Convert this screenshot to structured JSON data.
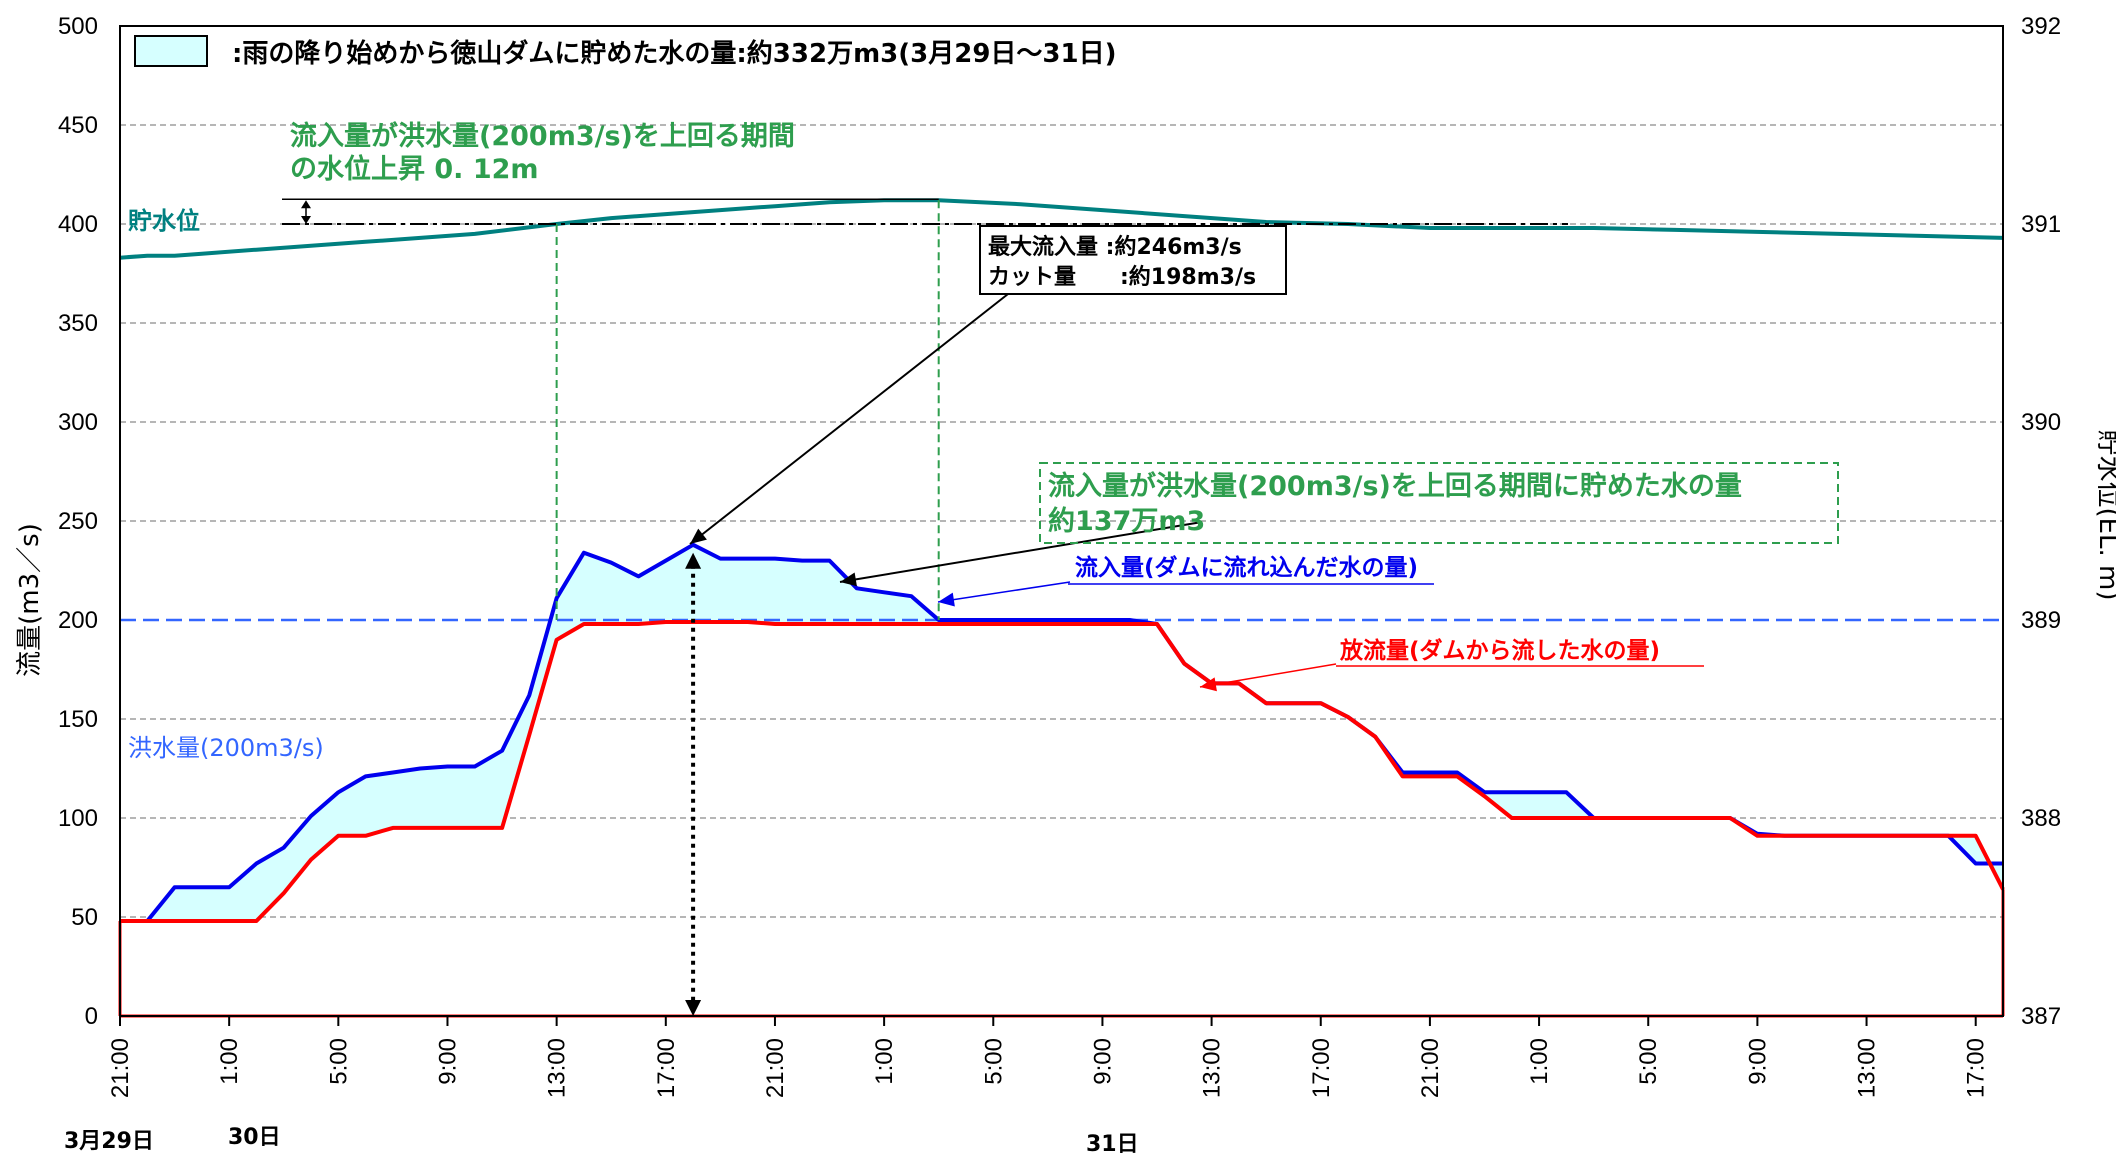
{
  "chart_data": {
    "type": "line",
    "legend": {
      "swatch_fill": "#d6ffff",
      "text": ":雨の降り始めから徳山ダムに貯めた水の量:約332万m3(3月29日～31日)"
    },
    "y_left": {
      "label": "流量(m3／s)",
      "min": 0,
      "max": 500,
      "ticks": [
        "0",
        "50",
        "100",
        "150",
        "200",
        "250",
        "300",
        "350",
        "400",
        "450",
        "500"
      ]
    },
    "y_right": {
      "label": "貯水位(EL. m)",
      "min": 387,
      "max": 392,
      "ticks": [
        "387",
        "388",
        "389",
        "390",
        "391",
        "392"
      ]
    },
    "x": {
      "start_hour": 0,
      "end_hour": 69,
      "tick_labels": [
        "21:00",
        "1:00",
        "5:00",
        "9:00",
        "13:00",
        "17:00",
        "21:00",
        "1:00",
        "5:00",
        "9:00",
        "13:00",
        "17:00",
        "21:00",
        "1:00",
        "5:00",
        "9:00",
        "13:00",
        "17:00"
      ],
      "date_labels": [
        {
          "label": "3月29日",
          "hour": -1.7
        },
        {
          "label": "30日",
          "hour": 4.9
        },
        {
          "label": "31日",
          "hour": 36.6
        }
      ]
    },
    "flood_threshold": {
      "value": 200,
      "label": "洪水量(200m3/s)",
      "color": "#3366ff"
    },
    "series": [
      {
        "name": "流入量(ダムに流れ込んだ水の量)",
        "color": "#0000ee",
        "axis": "left",
        "points": [
          [
            0,
            48
          ],
          [
            1,
            48
          ],
          [
            2,
            65
          ],
          [
            3,
            65
          ],
          [
            4,
            65
          ],
          [
            5,
            77
          ],
          [
            6,
            85
          ],
          [
            7,
            101
          ],
          [
            8,
            113
          ],
          [
            9,
            121
          ],
          [
            10,
            123
          ],
          [
            11,
            125
          ],
          [
            12,
            126
          ],
          [
            13,
            126
          ],
          [
            14,
            134
          ],
          [
            15,
            162
          ],
          [
            16,
            211
          ],
          [
            17,
            234
          ],
          [
            18,
            229
          ],
          [
            19,
            222
          ],
          [
            20,
            230
          ],
          [
            21,
            238
          ],
          [
            22,
            231
          ],
          [
            23,
            231
          ],
          [
            24,
            231
          ],
          [
            25,
            230
          ],
          [
            26,
            230
          ],
          [
            27,
            216
          ],
          [
            28,
            214
          ],
          [
            29,
            212
          ],
          [
            30,
            200
          ],
          [
            31,
            200
          ],
          [
            32,
            200
          ],
          [
            33,
            200
          ],
          [
            34,
            200
          ],
          [
            35,
            200
          ],
          [
            36,
            200
          ],
          [
            37,
            200
          ],
          [
            38,
            198
          ],
          [
            39,
            178
          ],
          [
            40,
            168
          ],
          [
            41,
            168
          ],
          [
            42,
            158
          ],
          [
            43,
            158
          ],
          [
            44,
            158
          ],
          [
            45,
            151
          ],
          [
            46,
            141
          ],
          [
            47,
            123
          ],
          [
            48,
            123
          ],
          [
            49,
            123
          ],
          [
            50,
            113
          ],
          [
            51,
            113
          ],
          [
            52,
            113
          ],
          [
            53,
            113
          ],
          [
            54,
            100
          ],
          [
            55,
            100
          ],
          [
            56,
            100
          ],
          [
            57,
            100
          ],
          [
            58,
            100
          ],
          [
            59,
            100
          ],
          [
            60,
            92
          ],
          [
            61,
            91
          ],
          [
            62,
            91
          ],
          [
            63,
            91
          ],
          [
            64,
            91
          ],
          [
            65,
            91
          ],
          [
            66,
            91
          ],
          [
            67,
            91
          ],
          [
            68,
            77
          ],
          [
            69,
            77
          ]
        ]
      },
      {
        "name": "放流量(ダムから流した水の量)",
        "color": "#ff0000",
        "axis": "left",
        "points": [
          [
            0,
            48
          ],
          [
            1,
            48
          ],
          [
            2,
            48
          ],
          [
            3,
            48
          ],
          [
            4,
            48
          ],
          [
            5,
            48
          ],
          [
            6,
            62
          ],
          [
            7,
            79
          ],
          [
            8,
            91
          ],
          [
            9,
            91
          ],
          [
            10,
            95
          ],
          [
            11,
            95
          ],
          [
            12,
            95
          ],
          [
            13,
            95
          ],
          [
            14,
            95
          ],
          [
            15,
            142
          ],
          [
            16,
            190
          ],
          [
            17,
            198
          ],
          [
            18,
            198
          ],
          [
            19,
            198
          ],
          [
            20,
            199
          ],
          [
            21,
            199
          ],
          [
            22,
            199
          ],
          [
            23,
            199
          ],
          [
            24,
            198
          ],
          [
            25,
            198
          ],
          [
            26,
            198
          ],
          [
            27,
            198
          ],
          [
            28,
            198
          ],
          [
            29,
            198
          ],
          [
            30,
            198
          ],
          [
            31,
            198
          ],
          [
            32,
            198
          ],
          [
            33,
            198
          ],
          [
            34,
            198
          ],
          [
            35,
            198
          ],
          [
            36,
            198
          ],
          [
            37,
            198
          ],
          [
            38,
            198
          ],
          [
            39,
            178
          ],
          [
            40,
            168
          ],
          [
            41,
            168
          ],
          [
            42,
            158
          ],
          [
            43,
            158
          ],
          [
            44,
            158
          ],
          [
            45,
            151
          ],
          [
            46,
            141
          ],
          [
            47,
            121
          ],
          [
            48,
            121
          ],
          [
            49,
            121
          ],
          [
            50,
            111
          ],
          [
            51,
            100
          ],
          [
            52,
            100
          ],
          [
            53,
            100
          ],
          [
            54,
            100
          ],
          [
            55,
            100
          ],
          [
            56,
            100
          ],
          [
            57,
            100
          ],
          [
            58,
            100
          ],
          [
            59,
            100
          ],
          [
            60,
            91
          ],
          [
            61,
            91
          ],
          [
            62,
            91
          ],
          [
            63,
            91
          ],
          [
            64,
            91
          ],
          [
            65,
            91
          ],
          [
            66,
            91
          ],
          [
            67,
            91
          ],
          [
            68,
            91
          ],
          [
            69,
            64
          ]
        ]
      },
      {
        "name": "貯水位",
        "color": "#008080",
        "axis": "right",
        "points": [
          [
            0,
            390.83
          ],
          [
            1,
            390.84
          ],
          [
            2,
            390.84
          ],
          [
            3,
            390.85
          ],
          [
            5,
            390.87
          ],
          [
            7,
            390.89
          ],
          [
            9,
            390.91
          ],
          [
            11,
            390.93
          ],
          [
            13,
            390.95
          ],
          [
            16,
            391.0
          ],
          [
            18,
            391.03
          ],
          [
            20,
            391.05
          ],
          [
            22,
            391.07
          ],
          [
            24,
            391.09
          ],
          [
            26,
            391.11
          ],
          [
            28,
            391.12
          ],
          [
            30,
            391.12
          ],
          [
            33,
            391.1
          ],
          [
            36,
            391.07
          ],
          [
            39,
            391.04
          ],
          [
            42,
            391.01
          ],
          [
            45,
            391.0
          ],
          [
            48,
            390.98
          ],
          [
            51,
            390.98
          ],
          [
            54,
            390.98
          ],
          [
            57,
            390.97
          ],
          [
            60,
            390.96
          ],
          [
            63,
            390.95
          ],
          [
            66,
            390.94
          ],
          [
            69,
            390.93
          ]
        ]
      }
    ],
    "annotations": {
      "rise_text_1": "流入量が洪水量(200m3/s)を上回る期間",
      "rise_text_2": "の水位上昇 0. 12m",
      "peak_line_1": "最大流入量 :約246m3/s",
      "peak_line_2": "カット量　　:約198m3/s",
      "stored_line_1": "流入量が洪水量(200m3/s)を上回る期間に貯めた水の量",
      "stored_line_2": "約137万m3",
      "water_level_label": "貯水位",
      "inflow_label": "流入量(ダムに流れ込んだ水の量)",
      "outflow_label": "放流量(ダムから流した水の量)",
      "green": "#2e9e4e"
    }
  }
}
